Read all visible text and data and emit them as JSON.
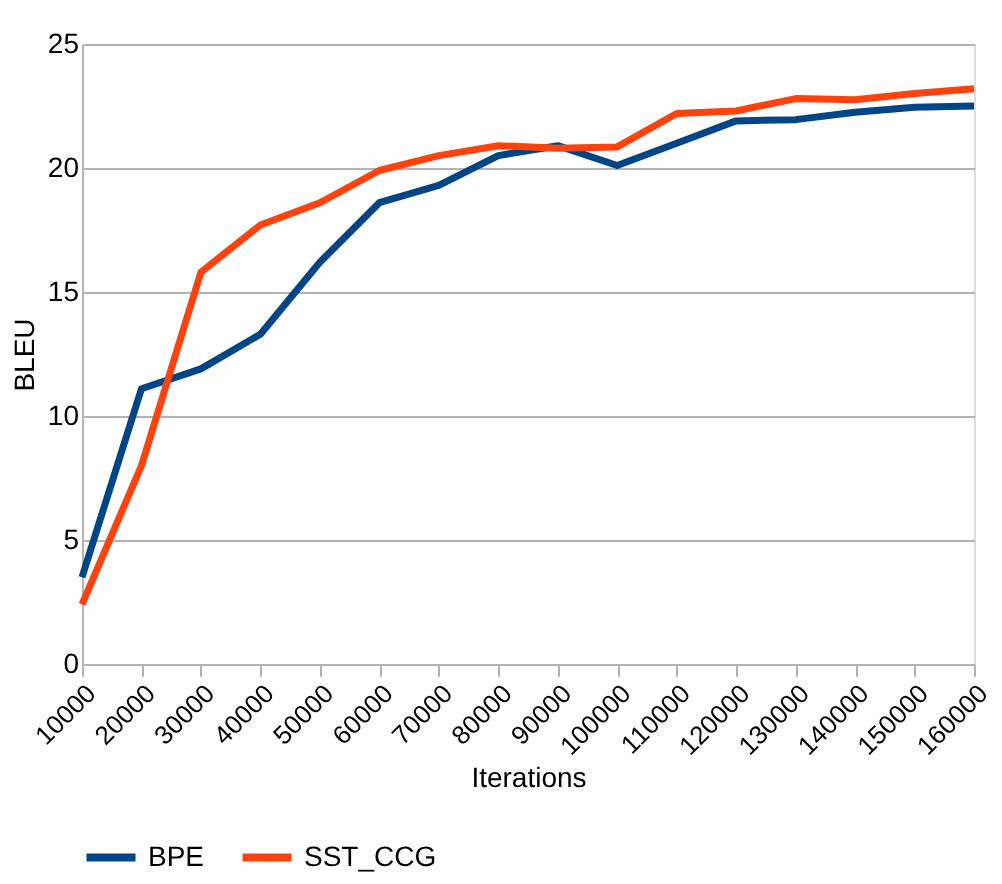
{
  "chart_data": {
    "type": "line",
    "xlabel": "Iterations",
    "ylabel": "BLEU",
    "x": [
      10000,
      20000,
      30000,
      40000,
      50000,
      60000,
      70000,
      80000,
      90000,
      100000,
      110000,
      120000,
      130000,
      140000,
      150000,
      160000
    ],
    "series": [
      {
        "name": "BPE",
        "color": "#004586",
        "values": [
          3.5,
          11.1,
          11.9,
          13.3,
          16.2,
          18.6,
          19.3,
          20.5,
          20.9,
          20.1,
          21.0,
          21.9,
          21.95,
          22.25,
          22.45,
          22.5
        ]
      },
      {
        "name": "SST_CCG",
        "color": "#ff420e",
        "values": [
          2.4,
          8.0,
          15.8,
          17.7,
          18.6,
          19.9,
          20.5,
          20.9,
          20.8,
          20.85,
          22.2,
          22.3,
          22.8,
          22.75,
          23.0,
          23.2
        ]
      }
    ],
    "xlim": [
      10000,
      160000
    ],
    "xticks": [
      10000,
      20000,
      30000,
      40000,
      50000,
      60000,
      70000,
      80000,
      90000,
      100000,
      110000,
      120000,
      130000,
      140000,
      150000,
      160000
    ],
    "ylim": [
      0,
      25
    ],
    "yticks": [
      0,
      5,
      10,
      15,
      20,
      25
    ],
    "grid": "y",
    "legend": "bottom",
    "marker": "none",
    "line_style": "solid"
  }
}
